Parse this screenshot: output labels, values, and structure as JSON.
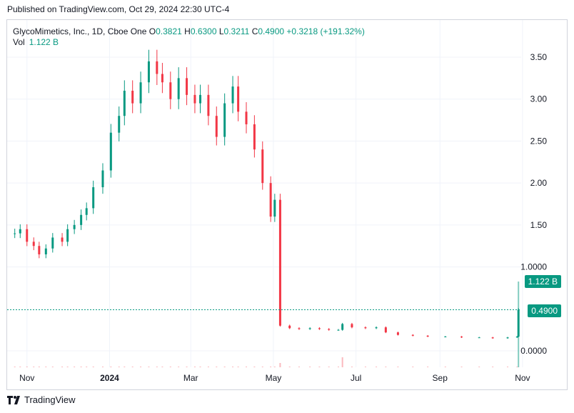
{
  "header": {
    "published": "Published on TradingView.com, Oct 29, 2024 22:30 UTC-4"
  },
  "legend": {
    "symbol": "GlycoMimetics, Inc., 1D, Cboe One",
    "o_label": "O",
    "o": "0.3821",
    "h_label": "H",
    "h": "0.6300",
    "l_label": "L",
    "l": "0.3211",
    "c_label": "C",
    "c": "0.4900",
    "change": "+0.3218 (+191.32%)",
    "vol_label": "Vol",
    "vol": "1.122 B"
  },
  "tags": {
    "volume": "1.122 B",
    "price": "0.4900"
  },
  "footer": {
    "brand": "TradingView"
  },
  "colors": {
    "up": "#089981",
    "down": "#f23645",
    "grid": "#f0f3fa",
    "text": "#131722"
  },
  "chart_data": {
    "type": "candlestick",
    "y_ticks": [
      "3.50",
      "3.00",
      "2.50",
      "2.00",
      "1.50",
      "1.0000",
      "0.0000"
    ],
    "x_ticks": [
      "Nov",
      "2024",
      "Mar",
      "May",
      "Jul",
      "Sep",
      "Nov"
    ],
    "last_close": 0.49,
    "last_volume": "1.122 B",
    "series": [
      {
        "x": "2023-10-23",
        "c": 1.4
      },
      {
        "x": "2023-10-27",
        "c": 1.45
      },
      {
        "x": "2023-11-01",
        "c": 1.3
      },
      {
        "x": "2023-11-06",
        "c": 1.25
      },
      {
        "x": "2023-11-10",
        "c": 1.15
      },
      {
        "x": "2023-11-15",
        "c": 1.22
      },
      {
        "x": "2023-11-20",
        "c": 1.35
      },
      {
        "x": "2023-11-27",
        "c": 1.3
      },
      {
        "x": "2023-12-01",
        "c": 1.45
      },
      {
        "x": "2023-12-06",
        "c": 1.5
      },
      {
        "x": "2023-12-11",
        "c": 1.62
      },
      {
        "x": "2023-12-15",
        "c": 1.7
      },
      {
        "x": "2023-12-20",
        "c": 1.95
      },
      {
        "x": "2023-12-27",
        "c": 2.15
      },
      {
        "x": "2024-01-02",
        "c": 2.6
      },
      {
        "x": "2024-01-08",
        "c": 2.8
      },
      {
        "x": "2024-01-12",
        "c": 3.1
      },
      {
        "x": "2024-01-18",
        "c": 2.95
      },
      {
        "x": "2024-01-24",
        "c": 3.2
      },
      {
        "x": "2024-01-30",
        "c": 3.45
      },
      {
        "x": "2024-02-05",
        "c": 3.3
      },
      {
        "x": "2024-02-09",
        "c": 3.2
      },
      {
        "x": "2024-02-15",
        "c": 3.0
      },
      {
        "x": "2024-02-21",
        "c": 3.25
      },
      {
        "x": "2024-02-27",
        "c": 3.05
      },
      {
        "x": "2024-03-04",
        "c": 2.95
      },
      {
        "x": "2024-03-08",
        "c": 3.05
      },
      {
        "x": "2024-03-14",
        "c": 2.8
      },
      {
        "x": "2024-03-20",
        "c": 2.55
      },
      {
        "x": "2024-03-26",
        "c": 2.95
      },
      {
        "x": "2024-04-01",
        "c": 3.15
      },
      {
        "x": "2024-04-05",
        "c": 2.85
      },
      {
        "x": "2024-04-11",
        "c": 2.7
      },
      {
        "x": "2024-04-17",
        "c": 2.4
      },
      {
        "x": "2024-04-23",
        "c": 2.0
      },
      {
        "x": "2024-04-29",
        "c": 1.6
      },
      {
        "x": "2024-05-02",
        "c": 1.8
      },
      {
        "x": "2024-05-06",
        "c": 0.3
      },
      {
        "x": "2024-05-13",
        "c": 0.27
      },
      {
        "x": "2024-05-20",
        "c": 0.26
      },
      {
        "x": "2024-05-28",
        "c": 0.27
      },
      {
        "x": "2024-06-04",
        "c": 0.26
      },
      {
        "x": "2024-06-11",
        "c": 0.25
      },
      {
        "x": "2024-06-18",
        "c": 0.25
      },
      {
        "x": "2024-06-21",
        "c": 0.32
      },
      {
        "x": "2024-06-28",
        "c": 0.28
      },
      {
        "x": "2024-07-08",
        "c": 0.27
      },
      {
        "x": "2024-07-16",
        "c": 0.28
      },
      {
        "x": "2024-07-23",
        "c": 0.22
      },
      {
        "x": "2024-08-01",
        "c": 0.19
      },
      {
        "x": "2024-08-12",
        "c": 0.18
      },
      {
        "x": "2024-08-23",
        "c": 0.17
      },
      {
        "x": "2024-09-05",
        "c": 0.17
      },
      {
        "x": "2024-09-17",
        "c": 0.16
      },
      {
        "x": "2024-09-30",
        "c": 0.16
      },
      {
        "x": "2024-10-10",
        "c": 0.15
      },
      {
        "x": "2024-10-21",
        "c": 0.16
      },
      {
        "x": "2024-10-28",
        "c": 0.17
      },
      {
        "x": "2024-10-29",
        "c": 0.49
      }
    ]
  }
}
